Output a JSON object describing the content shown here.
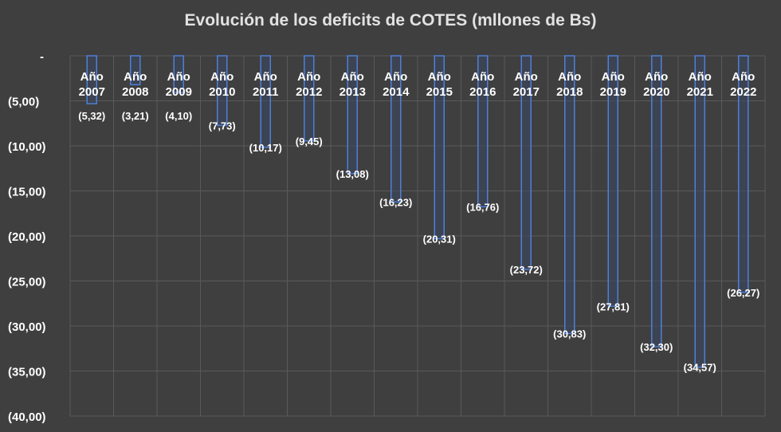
{
  "chart_data": {
    "type": "bar",
    "title": "Evolución de los deficits de COTES (mllones de Bs)",
    "xlabel": "",
    "ylabel": "",
    "categories": [
      "Año 2007",
      "Año 2008",
      "Año 2009",
      "Año 2010",
      "Año 2011",
      "Año 2012",
      "Año 2013",
      "Año 2014",
      "Año 2015",
      "Año 2016",
      "Año 2017",
      "Año 2018",
      "Año 2019",
      "Año 2020",
      "Año 2021",
      "Año 2022"
    ],
    "values": [
      -5.32,
      -3.21,
      -4.1,
      -7.73,
      -10.17,
      -9.45,
      -13.08,
      -16.23,
      -20.31,
      -16.76,
      -23.72,
      -30.83,
      -27.81,
      -32.3,
      -34.57,
      -26.27
    ],
    "data_labels": [
      "(5,32)",
      "(3,21)",
      "(4,10)",
      "(7,73)",
      "(10,17)",
      "(9,45)",
      "(13,08)",
      "(16,23)",
      "(20,31)",
      "(16,76)",
      "(23,72)",
      "(30,83)",
      "(27,81)",
      "(32,30)",
      "(34,57)",
      "(26,27)"
    ],
    "ylim": [
      -40,
      0
    ],
    "yticks": [
      0,
      -5,
      -10,
      -15,
      -20,
      -25,
      -30,
      -35,
      -40
    ],
    "ytick_labels": [
      "-",
      "(5,00)",
      "(10,00)",
      "(15,00)",
      "(20,00)",
      "(25,00)",
      "(30,00)",
      "(35,00)",
      "(40,00)"
    ],
    "grid": true,
    "legend": "none",
    "colors": {
      "background": "#3f3f3f",
      "bar_fill": "#3b4660",
      "bar_stroke": "#4f7fd6",
      "text": "#ffffff",
      "grid": "#5a5a5a"
    }
  }
}
